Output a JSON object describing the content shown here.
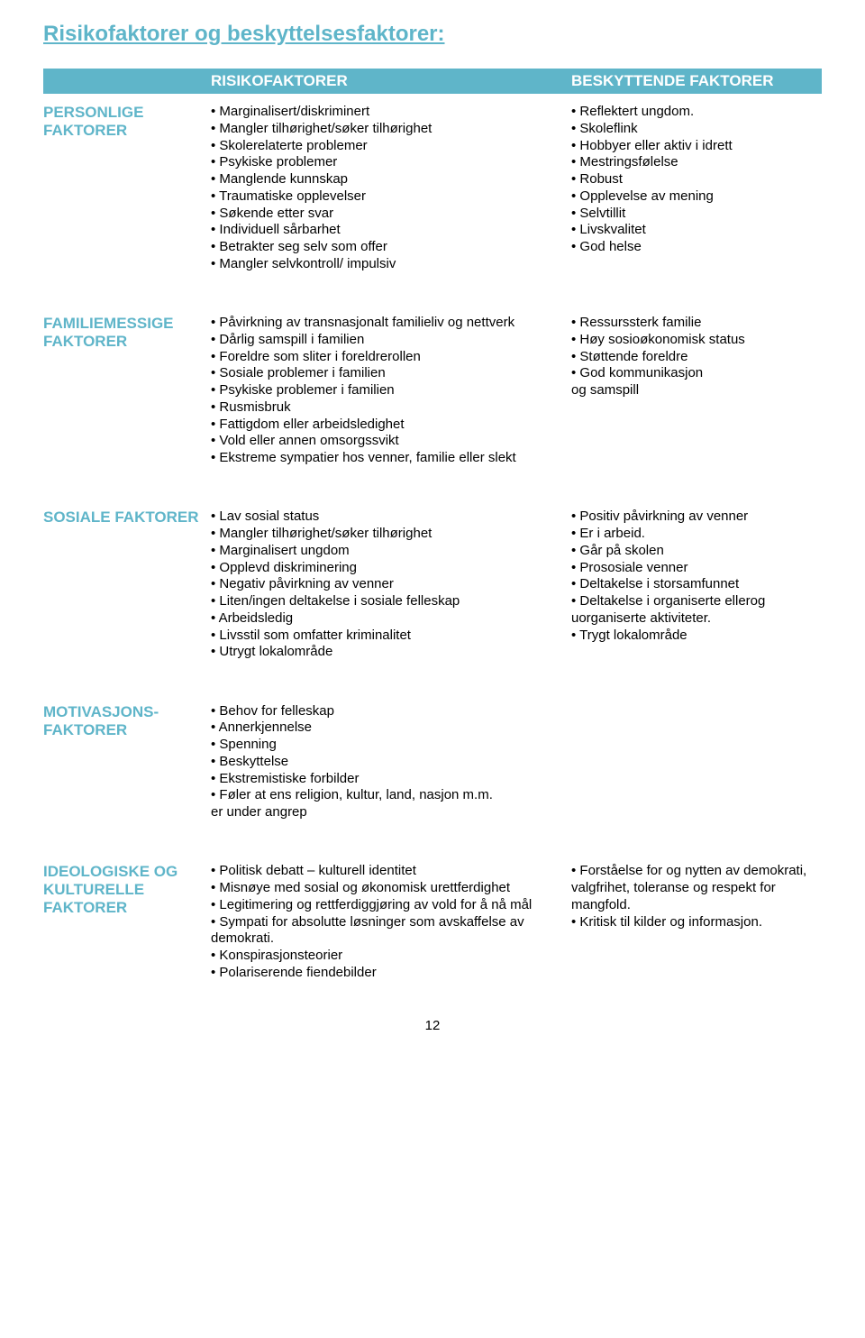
{
  "title": "Risikofaktorer og beskyttelsesfaktorer:",
  "pageNumber": "12",
  "header": {
    "risk": "RISIKOFAKTORER",
    "protect": "BESKYTTENDE FAKTORER"
  },
  "rows": [
    {
      "label": "PERSONLIGE FAKTORER",
      "risk": "• Marginalisert/diskriminert\n• Mangler tilhørighet/søker tilhørighet\n• Skolerelaterte problemer\n• Psykiske problemer\n• Manglende kunnskap\n• Traumatiske opplevelser\n• Søkende etter svar\n• Individuell sårbarhet\n• Betrakter seg selv som offer\n• Mangler selvkontroll/ impulsiv",
      "protect": "• Reflektert ungdom.\n• Skoleflink\n• Hobbyer eller aktiv i idrett\n• Mestringsfølelse\n• Robust\n• Opplevelse av mening\n• Selvtillit\n• Livskvalitet\n• God helse"
    },
    {
      "label": "FAMILIEMESSIGE FAKTORER",
      "risk": "• Påvirkning av transnasjonalt familieliv og nettverk\n• Dårlig samspill i familien\n• Foreldre som sliter i foreldrerollen\n• Sosiale problemer i familien\n• Psykiske problemer i familien\n• Rusmisbruk\n• Fattigdom eller arbeidsledighet\n• Vold eller annen omsorgssvikt\n• Ekstreme sympatier hos venner, familie eller slekt",
      "protect": "• Ressurssterk familie\n• Høy sosioøkonomisk status\n• Støttende foreldre\n• God kommunikasjon\nog samspill"
    },
    {
      "label": "SOSIALE FAKTORER",
      "risk": "• Lav sosial status\n• Mangler tilhørighet/søker tilhørighet\n• Marginalisert ungdom\n• Opplevd diskriminering\n• Negativ påvirkning av venner\n• Liten/ingen deltakelse i sosiale felleskap\n• Arbeidsledig\n• Livsstil som omfatter kriminalitet\n• Utrygt lokalområde",
      "protect": "• Positiv påvirkning av venner\n• Er i arbeid.\n• Går på skolen\n• Prososiale venner\n• Deltakelse i storsamfunnet\n• Deltakelse i organiserte ellerog uorganiserte aktiviteter.\n• Trygt lokalområde"
    },
    {
      "label": "MOTIVASJONS-FAKTORER",
      "risk": "• Behov for felleskap\n• Annerkjennelse\n• Spenning\n• Beskyttelse\n• Ekstremistiske forbilder\n• Føler at ens religion, kultur, land, nasjon m.m.\ner under angrep",
      "protect": ""
    },
    {
      "label": "IDEOLOGISKE OG KULTURELLE FAKTORER",
      "risk": "• Politisk debatt – kulturell identitet\n• Misnøye med sosial og økonomisk urettferdighet\n• Legitimering og rettferdiggjøring av vold for å nå mål\n• Sympati for absolutte løsninger som avskaffelse av demokrati.\n• Konspirasjonsteorier\n• Polariserende fiendebilder",
      "protect": "• Forståelse for og nytten av demokrati, valgfrihet, toleranse og respekt for mangfold.\n• Kritisk til kilder og informasjon."
    }
  ]
}
